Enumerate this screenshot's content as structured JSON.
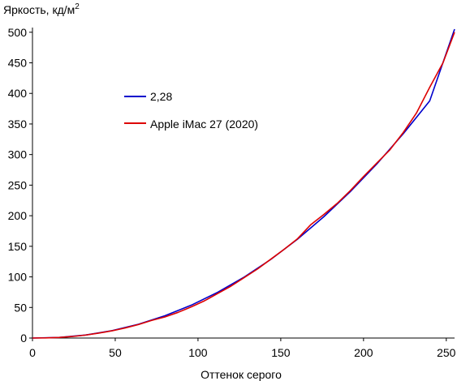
{
  "chart_data": {
    "type": "line",
    "ylabel": "Яркость, кд/м",
    "ylabel_superscript": "2",
    "xlabel": "Оттенок серого",
    "xlim": [
      0,
      255
    ],
    "ylim": [
      0,
      505
    ],
    "xticks": [
      0,
      50,
      100,
      150,
      200,
      250
    ],
    "yticks": [
      0,
      50,
      100,
      150,
      200,
      250,
      300,
      350,
      400,
      450,
      500
    ],
    "grid": false,
    "legend_position": "upper-left",
    "series": [
      {
        "name": "2,28",
        "color": "#0000cc",
        "x": [
          0,
          16,
          32,
          48,
          64,
          80,
          96,
          112,
          128,
          144,
          160,
          176,
          192,
          208,
          224,
          240,
          255
        ],
        "y": [
          0,
          1.0,
          4.9,
          12.0,
          22.5,
          36.4,
          53.8,
          74.9,
          99.8,
          128.6,
          161.4,
          198.3,
          239.3,
          284.5,
          334.0,
          387.8,
          505
        ]
      },
      {
        "name": "Apple iMac 27 (2020)",
        "color": "#dd0000",
        "x": [
          0,
          8,
          16,
          24,
          32,
          40,
          48,
          56,
          64,
          72,
          80,
          88,
          96,
          104,
          112,
          120,
          128,
          136,
          144,
          152,
          160,
          168,
          176,
          184,
          192,
          200,
          208,
          216,
          224,
          232,
          240,
          248,
          255
        ],
        "y": [
          0,
          0.2,
          0.9,
          2.5,
          4.8,
          8.0,
          11.8,
          16.5,
          22.0,
          28.8,
          34.5,
          42.0,
          51.0,
          61.0,
          73.0,
          85.0,
          99.0,
          113.0,
          129.0,
          145.0,
          162.0,
          185.0,
          202.0,
          220.0,
          241.0,
          264.0,
          286.0,
          308.0,
          336.0,
          368.0,
          410.0,
          450.0,
          500.0
        ]
      }
    ]
  }
}
